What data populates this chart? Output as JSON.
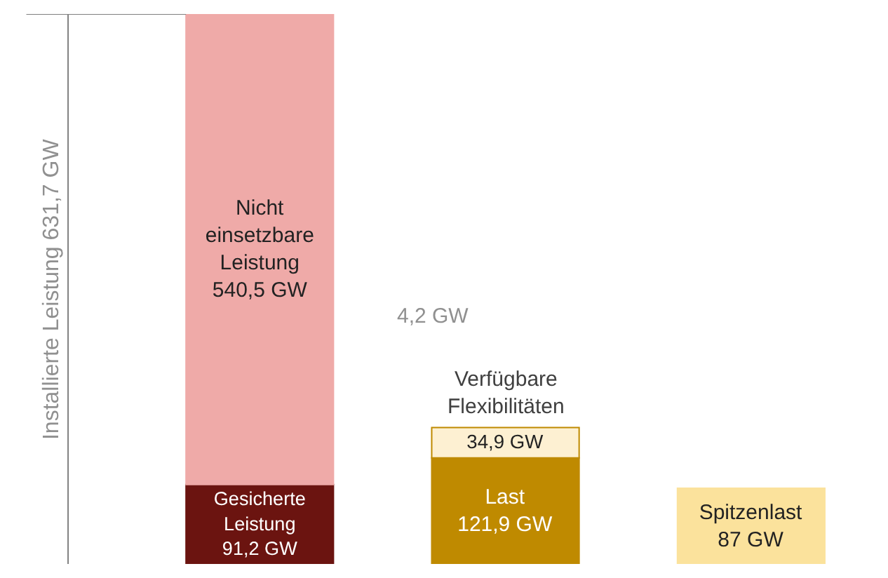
{
  "chart_data": {
    "type": "bar",
    "stacked": true,
    "categories": [
      null,
      null,
      null
    ],
    "series": [
      {
        "name": "Gesicherte Leistung",
        "color": "#6b1410",
        "values": [
          91.2,
          null,
          null
        ],
        "value_labels": [
          "91,2 GW",
          null,
          null
        ]
      },
      {
        "name": "Nicht einsetzbare Leistung",
        "color": "#efaaa8",
        "values": [
          540.5,
          null,
          null
        ],
        "value_labels": [
          "540,5 GW",
          null,
          null
        ]
      },
      {
        "name": "Last",
        "color": "#bf8a00",
        "values": [
          null,
          121.9,
          null
        ],
        "value_labels": [
          null,
          "121,9 GW",
          null
        ]
      },
      {
        "name": "Verfügbare Flexibilitäten",
        "color": "#fdf0d2",
        "values": [
          null,
          34.9,
          null
        ],
        "value_labels": [
          null,
          "34,9 GW",
          null
        ]
      },
      {
        "name": "Spitzenlast",
        "color": "#fbe29c",
        "values": [
          null,
          null,
          87
        ],
        "value_labels": [
          null,
          null,
          "87 GW"
        ]
      }
    ],
    "annotations": [
      "Installierte Leistung 631,7 GW",
      "4,2 GW"
    ],
    "ylim": [
      0,
      631.7
    ]
  }
}
